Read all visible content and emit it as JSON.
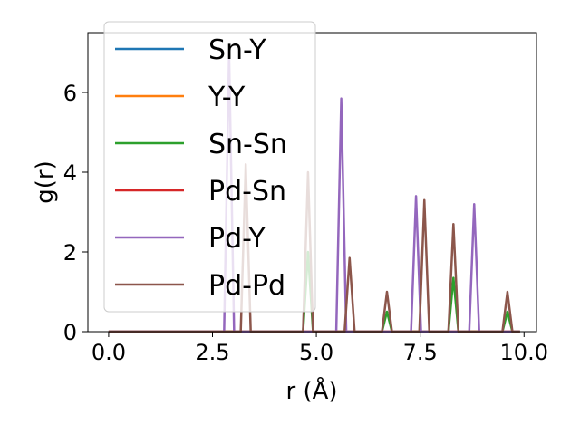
{
  "chart_data": {
    "type": "line",
    "title": "",
    "xlabel": "r (Å)",
    "ylabel": "g(r)",
    "xlim": [
      -0.5,
      10.3
    ],
    "ylim": [
      0,
      7.5
    ],
    "xticks": [
      0.0,
      2.5,
      5.0,
      7.5,
      10.0
    ],
    "xtick_labels": [
      "0.0",
      "2.5",
      "5.0",
      "7.5",
      "10.0"
    ],
    "yticks": [
      0,
      2,
      4,
      6
    ],
    "ytick_labels": [
      "0",
      "2",
      "4",
      "6"
    ],
    "grid": false,
    "legend_position": "upper-left",
    "peak_half_width": 0.12,
    "series": [
      {
        "name": "Sn-Y",
        "color": "#1f77b4",
        "peaks": []
      },
      {
        "name": "Y-Y",
        "color": "#ff7f0e",
        "peaks": []
      },
      {
        "name": "Sn-Sn",
        "color": "#2ca02c",
        "peaks": [
          [
            4.8,
            2.0
          ],
          [
            6.7,
            0.5
          ],
          [
            8.3,
            1.35
          ],
          [
            9.6,
            0.5
          ]
        ]
      },
      {
        "name": "Pd-Sn",
        "color": "#d62728",
        "peaks": []
      },
      {
        "name": "Pd-Y",
        "color": "#9467bd",
        "peaks": [
          [
            2.9,
            7.0
          ],
          [
            5.6,
            5.85
          ],
          [
            7.4,
            3.4
          ],
          [
            8.8,
            3.2
          ]
        ]
      },
      {
        "name": "Pd-Pd",
        "color": "#8c564b",
        "peaks": [
          [
            3.3,
            4.2
          ],
          [
            4.8,
            4.0
          ],
          [
            5.8,
            1.85
          ],
          [
            6.7,
            1.0
          ],
          [
            7.6,
            3.3
          ],
          [
            8.3,
            2.7
          ],
          [
            9.6,
            1.0
          ]
        ]
      }
    ],
    "x_range": [
      0.0,
      9.9
    ]
  }
}
